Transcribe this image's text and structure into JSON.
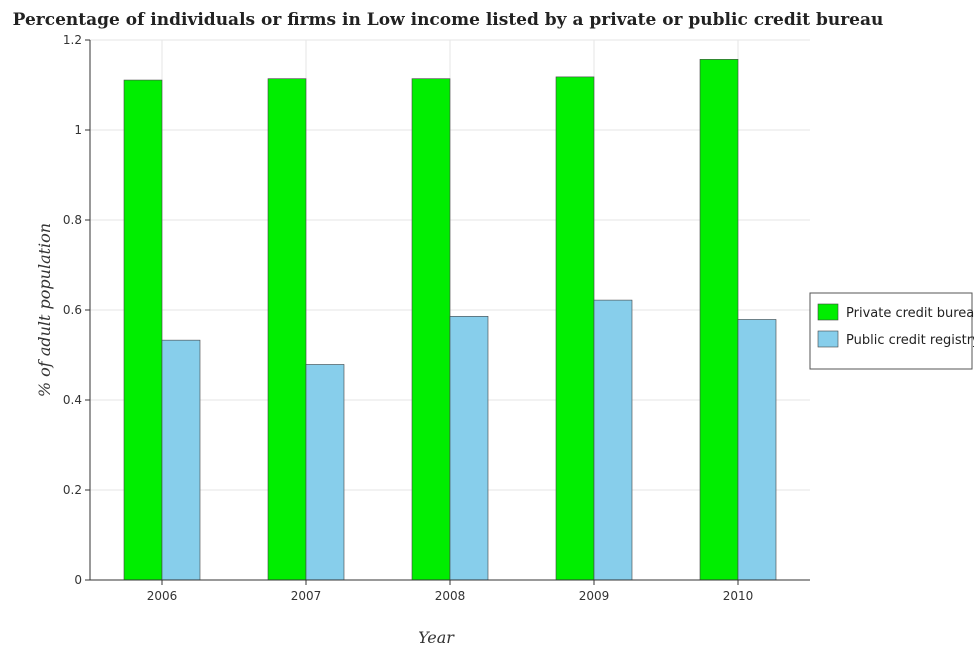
{
  "chart_data": {
    "type": "bar",
    "title": "Percentage of individuals or firms in Low income listed by a private or public credit bureau",
    "xlabel": "Year",
    "ylabel": "% of adult population",
    "categories": [
      "2006",
      "2007",
      "2008",
      "2009",
      "2010"
    ],
    "series": [
      {
        "name": "Private credit bureau",
        "color": "#00ee00",
        "values": [
          1.111,
          1.114,
          1.114,
          1.118,
          1.157
        ]
      },
      {
        "name": "Public credit registry",
        "color": "#87ceeb",
        "values": [
          0.533,
          0.479,
          0.586,
          0.622,
          0.579
        ]
      }
    ],
    "ylim": [
      0,
      1.2
    ],
    "yticks": [
      0,
      0.2,
      0.4,
      0.6,
      0.8,
      1.0,
      1.2
    ],
    "ytick_labels": [
      "0",
      "0.2",
      "0.4",
      "0.6",
      "0.8",
      "1",
      "1.2"
    ],
    "grid": true,
    "legend_position": "right"
  }
}
